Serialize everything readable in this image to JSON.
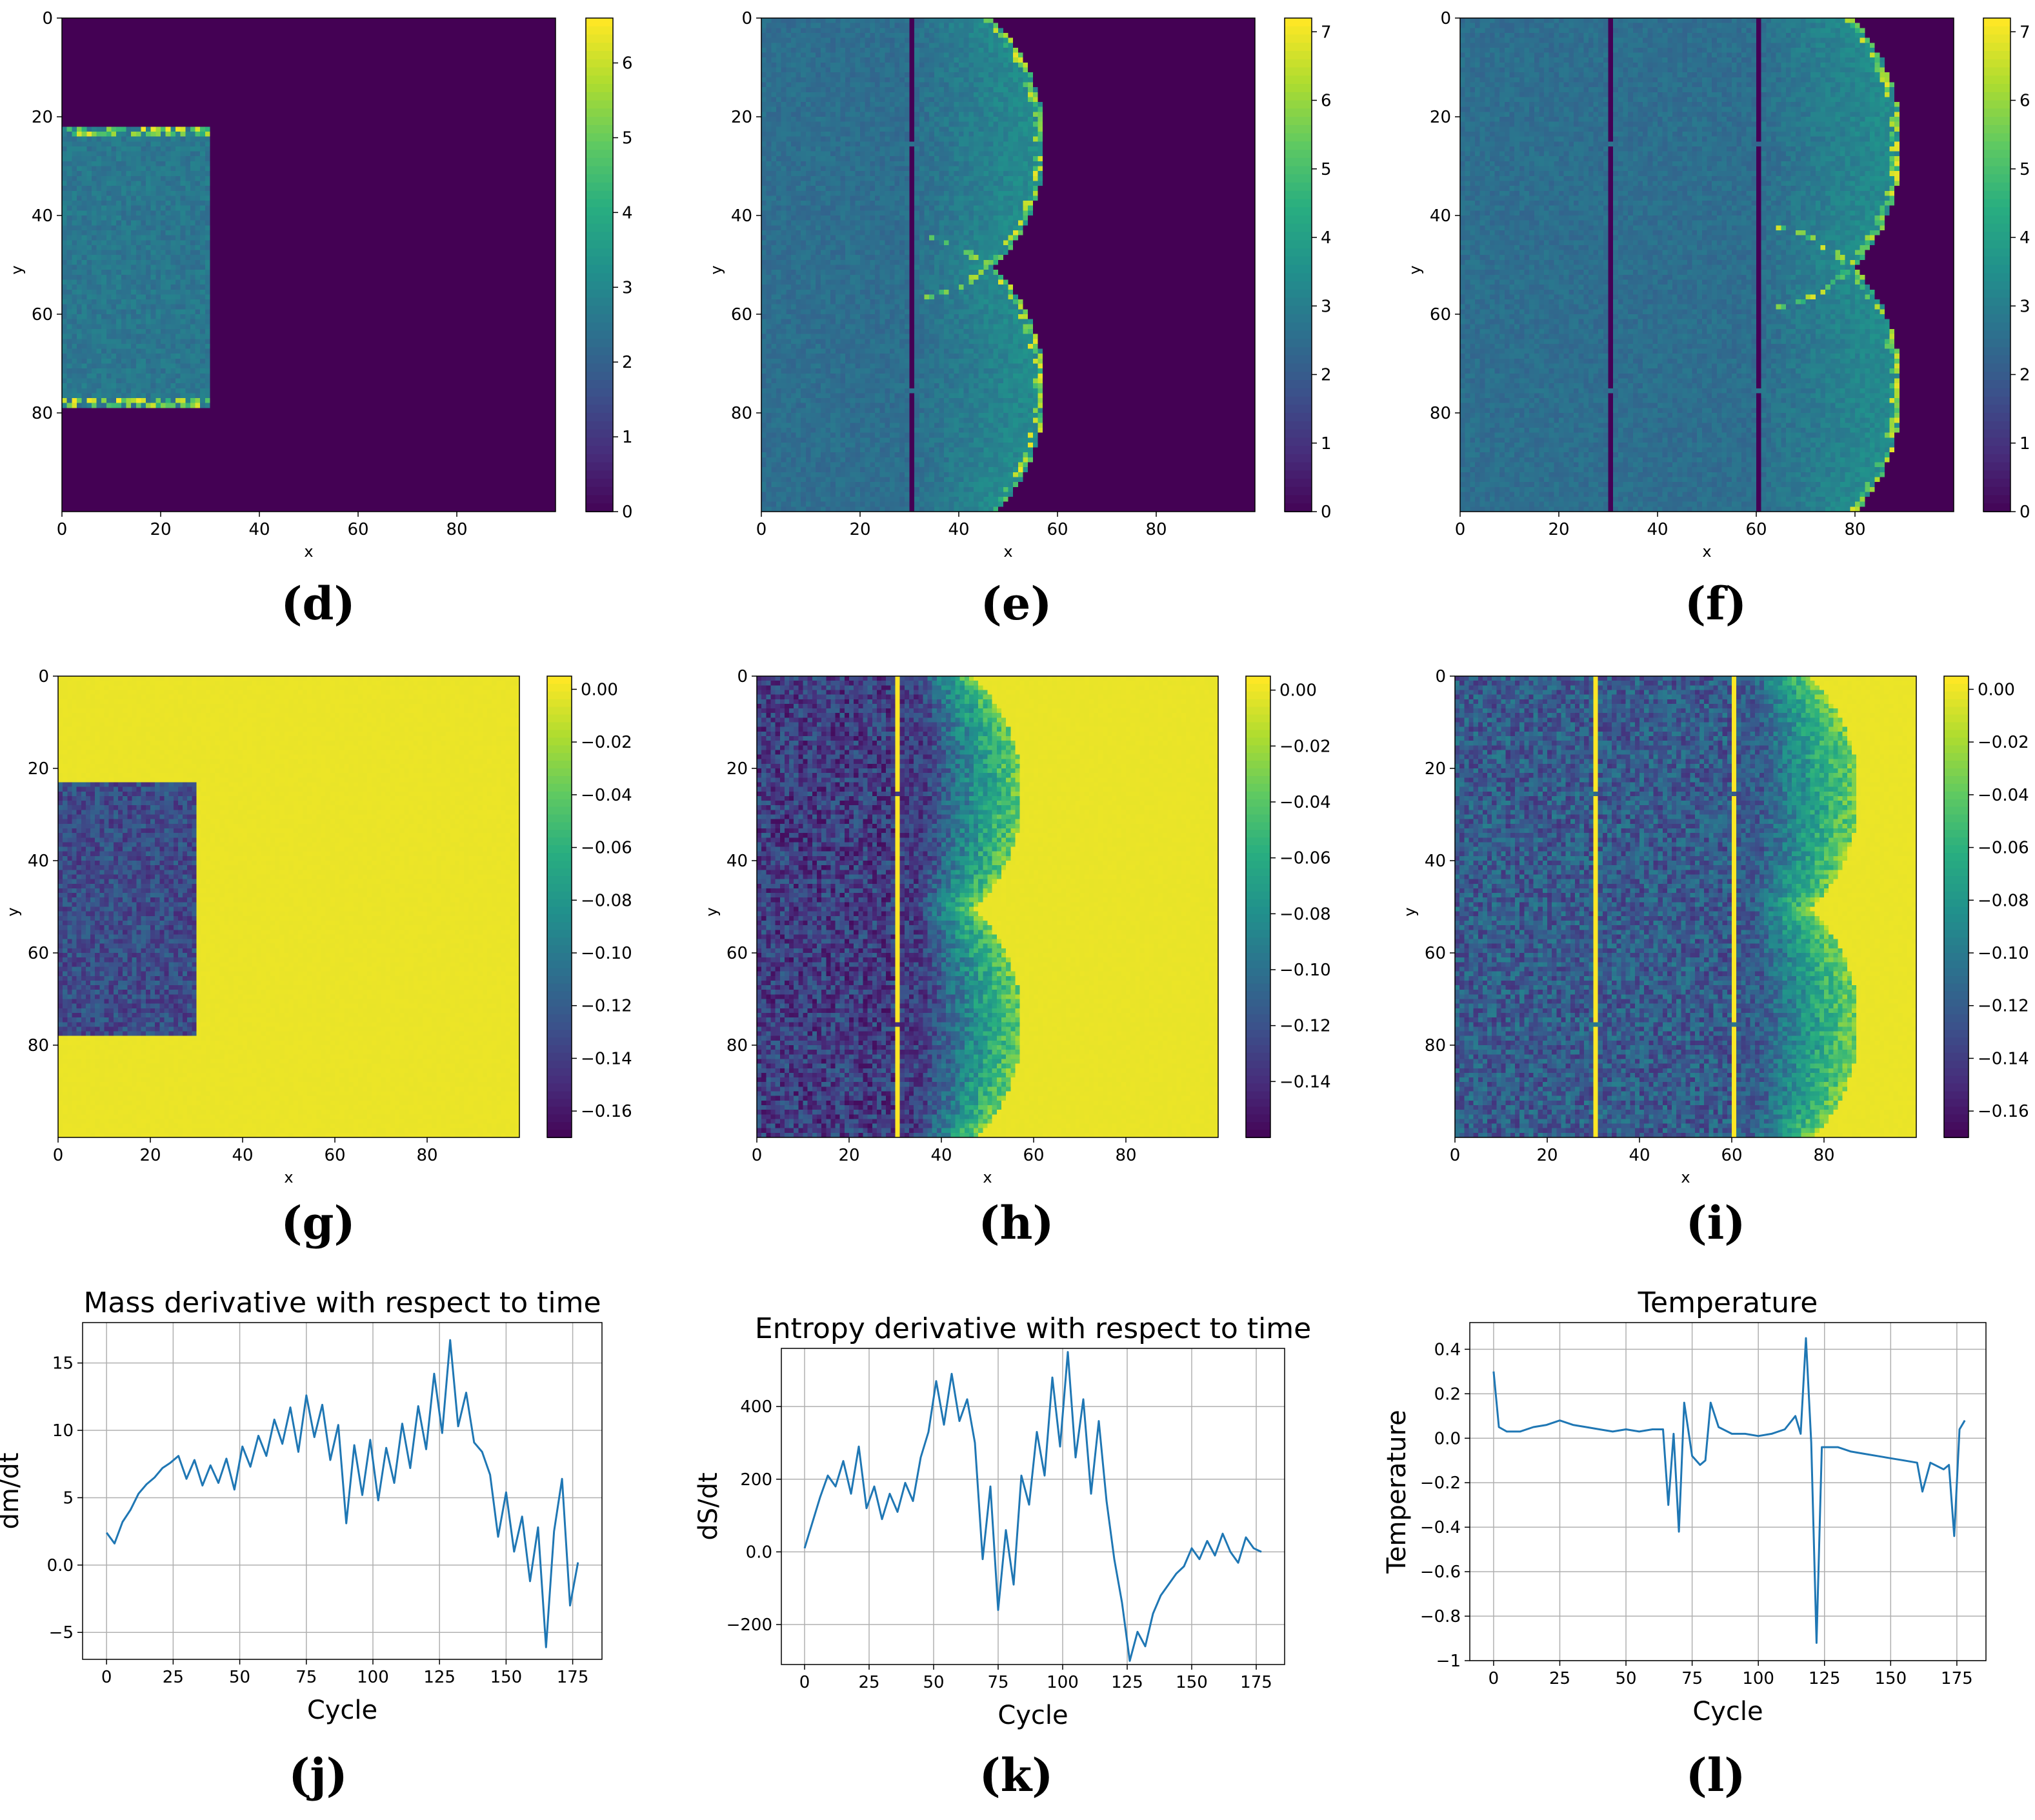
{
  "figure": {
    "panel_labels": [
      "(d)",
      "(e)",
      "(f)",
      "(g)",
      "(h)",
      "(i)",
      "(j)",
      "(k)",
      "(l)"
    ],
    "colormap": [
      "#440154",
      "#472d7b",
      "#3b528b",
      "#2c728e",
      "#21918c",
      "#28ae80",
      "#5ec962",
      "#addc30",
      "#fde725"
    ]
  },
  "chart_data": [
    {
      "id": "d",
      "type": "heatmap",
      "xlabel": "x",
      "ylabel": "y",
      "xticks": [
        "0",
        "20",
        "40",
        "60",
        "80"
      ],
      "yticks": [
        "0",
        "20",
        "40",
        "60",
        "80"
      ],
      "xlim": [
        0,
        100
      ],
      "ylim": [
        100,
        0
      ],
      "vmin": 0,
      "vmax": 6.6,
      "cbar_ticks": [
        "0",
        "1",
        "2",
        "3",
        "4",
        "5",
        "6"
      ],
      "fronts": [
        30
      ],
      "background": 0,
      "bulk": 2.6,
      "edge": 6.6,
      "lobes": [
        {
          "cy": 50,
          "r": 28
        }
      ],
      "kind": "mass"
    },
    {
      "id": "e",
      "type": "heatmap",
      "xlabel": "x",
      "ylabel": "y",
      "xticks": [
        "0",
        "20",
        "40",
        "60",
        "80"
      ],
      "yticks": [
        "0",
        "20",
        "40",
        "60",
        "80"
      ],
      "xlim": [
        0,
        100
      ],
      "ylim": [
        100,
        0
      ],
      "vmin": 0,
      "vmax": 7.2,
      "cbar_ticks": [
        "0",
        "1",
        "2",
        "3",
        "4",
        "5",
        "6",
        "7"
      ],
      "fronts": [
        30,
        60
      ],
      "background": 0,
      "bulk": 2.6,
      "edge": 7.0,
      "lobes": [
        {
          "cy": 25,
          "r": 27
        },
        {
          "cy": 75,
          "r": 27
        }
      ],
      "kind": "mass"
    },
    {
      "id": "f",
      "type": "heatmap",
      "xlabel": "x",
      "ylabel": "y",
      "xticks": [
        "0",
        "20",
        "40",
        "60",
        "80"
      ],
      "yticks": [
        "0",
        "20",
        "40",
        "60",
        "80"
      ],
      "xlim": [
        0,
        100
      ],
      "ylim": [
        100,
        0
      ],
      "vmin": 0,
      "vmax": 7.2,
      "cbar_ticks": [
        "0",
        "1",
        "2",
        "3",
        "4",
        "5",
        "6",
        "7"
      ],
      "fronts": [
        30,
        60,
        90
      ],
      "background": 0,
      "bulk": 2.6,
      "edge": 7.0,
      "lobes": [
        {
          "cy": 25,
          "r": 29
        },
        {
          "cy": 75,
          "r": 29
        }
      ],
      "kind": "mass"
    },
    {
      "id": "g",
      "type": "heatmap",
      "xlabel": "x",
      "ylabel": "y",
      "xticks": [
        "0",
        "20",
        "40",
        "60",
        "80"
      ],
      "yticks": [
        "0",
        "20",
        "40",
        "60",
        "80"
      ],
      "xlim": [
        0,
        100
      ],
      "ylim": [
        100,
        0
      ],
      "vmin": -0.17,
      "vmax": 0.005,
      "cbar_ticks": [
        "0.00",
        "−0.02",
        "−0.04",
        "−0.06",
        "−0.08",
        "−0.10",
        "−0.12",
        "−0.14",
        "−0.16"
      ],
      "fronts": [
        30
      ],
      "background": 0,
      "bulk": -0.13,
      "edge": -0.03,
      "lobes": [
        {
          "cy": 50,
          "r": 27
        }
      ],
      "kind": "entropy"
    },
    {
      "id": "h",
      "type": "heatmap",
      "xlabel": "x",
      "ylabel": "y",
      "xticks": [
        "0",
        "20",
        "40",
        "60",
        "80"
      ],
      "yticks": [
        "0",
        "20",
        "40",
        "60",
        "80"
      ],
      "xlim": [
        0,
        100
      ],
      "ylim": [
        100,
        0
      ],
      "vmin": -0.16,
      "vmax": 0.005,
      "cbar_ticks": [
        "0.00",
        "−0.02",
        "−0.04",
        "−0.06",
        "−0.08",
        "−0.10",
        "−0.12",
        "−0.14"
      ],
      "fronts": [
        30,
        60
      ],
      "background": 0,
      "bulk": -0.13,
      "edge": -0.03,
      "lobes": [
        {
          "cy": 25,
          "r": 27
        },
        {
          "cy": 75,
          "r": 27
        }
      ],
      "kind": "entropy"
    },
    {
      "id": "i",
      "type": "heatmap",
      "xlabel": "x",
      "ylabel": "y",
      "xticks": [
        "0",
        "20",
        "40",
        "60",
        "80"
      ],
      "yticks": [
        "0",
        "20",
        "40",
        "60",
        "80"
      ],
      "xlim": [
        0,
        100
      ],
      "ylim": [
        100,
        0
      ],
      "vmin": -0.17,
      "vmax": 0.005,
      "cbar_ticks": [
        "0.00",
        "−0.02",
        "−0.04",
        "−0.06",
        "−0.08",
        "−0.10",
        "−0.12",
        "−0.14",
        "−0.16"
      ],
      "fronts": [
        30,
        60,
        90
      ],
      "background": 0,
      "bulk": -0.12,
      "edge": -0.03,
      "lobes": [
        {
          "cy": 25,
          "r": 27
        },
        {
          "cy": 75,
          "r": 27
        }
      ],
      "kind": "entropy"
    },
    {
      "id": "j",
      "type": "line",
      "title": "Mass derivative with respect to time",
      "xlabel": "Cycle",
      "ylabel": "dm/dt",
      "xlim": [
        -9,
        186
      ],
      "ylim": [
        -7,
        18
      ],
      "xticks": [
        0,
        25,
        50,
        75,
        100,
        125,
        150,
        175
      ],
      "yticks": [
        -5,
        0,
        5,
        10,
        15
      ],
      "series": [
        {
          "name": "dm/dt",
          "color": "#1f77b4",
          "x": [
            0,
            3,
            6,
            9,
            12,
            15,
            18,
            21,
            24,
            27,
            30,
            33,
            36,
            39,
            42,
            45,
            48,
            51,
            54,
            57,
            60,
            63,
            66,
            69,
            72,
            75,
            78,
            81,
            84,
            87,
            90,
            93,
            96,
            99,
            102,
            105,
            108,
            111,
            114,
            117,
            120,
            123,
            126,
            129,
            132,
            135,
            138,
            141,
            144,
            147,
            150,
            153,
            156,
            159,
            162,
            165,
            168,
            171,
            174,
            177
          ],
          "y": [
            2.4,
            1.6,
            3.2,
            4.1,
            5.3,
            6.0,
            6.5,
            7.2,
            7.6,
            8.1,
            6.4,
            7.8,
            5.9,
            7.4,
            6.1,
            7.9,
            5.6,
            8.8,
            7.3,
            9.6,
            8.1,
            10.8,
            9.0,
            11.7,
            8.4,
            12.6,
            9.5,
            11.9,
            7.8,
            10.4,
            3.1,
            8.9,
            5.2,
            9.3,
            4.8,
            8.7,
            6.1,
            10.5,
            7.2,
            11.8,
            8.6,
            14.2,
            9.8,
            16.7,
            10.3,
            12.8,
            9.1,
            8.4,
            6.7,
            2.1,
            5.4,
            1.0,
            3.6,
            -1.2,
            2.8,
            -6.1,
            2.5,
            6.4,
            -3.0,
            0.2
          ]
        }
      ]
    },
    {
      "id": "k",
      "type": "line",
      "title": "Entropy derivative with respect to time",
      "xlabel": "Cycle",
      "ylabel": "dS/dt",
      "xlim": [
        -9,
        186
      ],
      "ylim": [
        -310,
        560
      ],
      "xticks": [
        0,
        25,
        50,
        75,
        100,
        125,
        150,
        175
      ],
      "yticks": [
        -200,
        0,
        200,
        400
      ],
      "series": [
        {
          "name": "dS/dt",
          "color": "#1f77b4",
          "x": [
            0,
            3,
            6,
            9,
            12,
            15,
            18,
            21,
            24,
            27,
            30,
            33,
            36,
            39,
            42,
            45,
            48,
            51,
            54,
            57,
            60,
            63,
            66,
            69,
            72,
            75,
            78,
            81,
            84,
            87,
            90,
            93,
            96,
            99,
            102,
            105,
            108,
            111,
            114,
            117,
            120,
            123,
            126,
            129,
            132,
            135,
            138,
            141,
            144,
            147,
            150,
            153,
            156,
            159,
            162,
            165,
            168,
            171,
            174,
            177
          ],
          "y": [
            10,
            80,
            150,
            210,
            180,
            250,
            160,
            290,
            120,
            180,
            90,
            160,
            110,
            190,
            140,
            260,
            330,
            470,
            350,
            490,
            360,
            420,
            300,
            -20,
            180,
            -160,
            60,
            -90,
            210,
            130,
            330,
            210,
            480,
            290,
            550,
            260,
            420,
            160,
            360,
            140,
            -20,
            -140,
            -300,
            -220,
            -260,
            -170,
            -120,
            -90,
            -60,
            -40,
            10,
            -20,
            30,
            -10,
            50,
            0,
            -30,
            40,
            10,
            0
          ]
        }
      ]
    },
    {
      "id": "l",
      "type": "line",
      "title": "Temperature",
      "xlabel": "Cycle",
      "ylabel": "Temperature",
      "xlim": [
        -9,
        186
      ],
      "ylim": [
        -1.0,
        0.52
      ],
      "xticks": [
        0,
        25,
        50,
        75,
        100,
        125,
        150,
        175
      ],
      "yticks": [
        -1.0,
        -0.8,
        -0.6,
        -0.4,
        -0.2,
        0.0,
        0.2,
        0.4
      ],
      "series": [
        {
          "name": "Temperature",
          "color": "#1f77b4",
          "x": [
            0,
            2,
            5,
            10,
            15,
            20,
            25,
            30,
            35,
            40,
            45,
            50,
            55,
            60,
            64,
            66,
            68,
            70,
            72,
            75,
            78,
            80,
            82,
            85,
            90,
            95,
            100,
            105,
            110,
            114,
            116,
            118,
            120,
            122,
            124,
            126,
            130,
            135,
            140,
            145,
            150,
            155,
            160,
            162,
            165,
            170,
            172,
            174,
            176,
            178
          ],
          "y": [
            0.3,
            0.05,
            0.03,
            0.03,
            0.05,
            0.06,
            0.08,
            0.06,
            0.05,
            0.04,
            0.03,
            0.04,
            0.03,
            0.04,
            0.04,
            -0.3,
            0.02,
            -0.42,
            0.16,
            -0.08,
            -0.12,
            -0.1,
            0.16,
            0.05,
            0.02,
            0.02,
            0.01,
            0.02,
            0.04,
            0.1,
            0.02,
            0.45,
            -0.02,
            -0.92,
            -0.04,
            -0.04,
            -0.04,
            -0.06,
            -0.07,
            -0.08,
            -0.09,
            -0.1,
            -0.11,
            -0.24,
            -0.11,
            -0.14,
            -0.12,
            -0.44,
            0.04,
            0.08
          ]
        }
      ]
    }
  ]
}
